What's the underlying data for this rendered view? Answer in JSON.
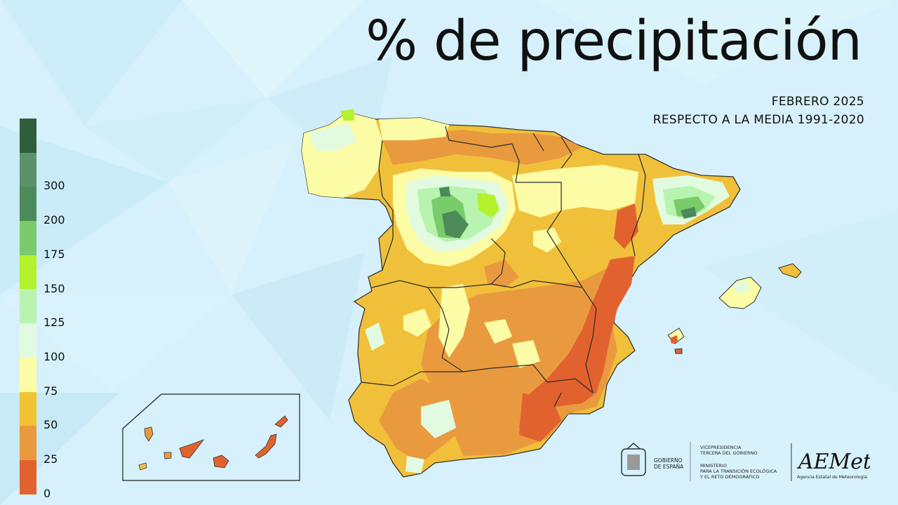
{
  "title": "% de precipitación",
  "subtitle_1": "FEBRERO 2025",
  "subtitle_2": "RESPECTO A LA MEDIA 1991-2020",
  "legend": {
    "classes": [
      {
        "color": "#2f5f3a",
        "label": ""
      },
      {
        "color": "#5c9269",
        "label": "300"
      },
      {
        "color": "#4d8a5a",
        "label": "200"
      },
      {
        "color": "#7acb6a",
        "label": "175"
      },
      {
        "color": "#b4f22b",
        "label": "150"
      },
      {
        "color": "#b8f4b0",
        "label": "125"
      },
      {
        "color": "#e2fbe0",
        "label": "100"
      },
      {
        "color": "#fcfca6",
        "label": "75"
      },
      {
        "color": "#f2c331",
        "label": "50"
      },
      {
        "color": "#e99a3f",
        "label": "25"
      },
      {
        "color": "#e2622f",
        "label": "0"
      }
    ]
  },
  "logos": {
    "gov_line1": "GOBIERNO",
    "gov_line2": "DE ESPAÑA",
    "vp_line1": "VICEPRESIDENCIA",
    "vp_line2": "TERCERA DEL GOBIERNO",
    "min_line1": "MINISTERIO",
    "min_line2": "PARA LA TRANSICIÓN ECOLÓGICA",
    "min_line3": "Y EL RETO DEMOGRÁFICO",
    "aemet_logo": "AEMet",
    "aemet_name": "Agencia Estatal de Meteorología"
  }
}
